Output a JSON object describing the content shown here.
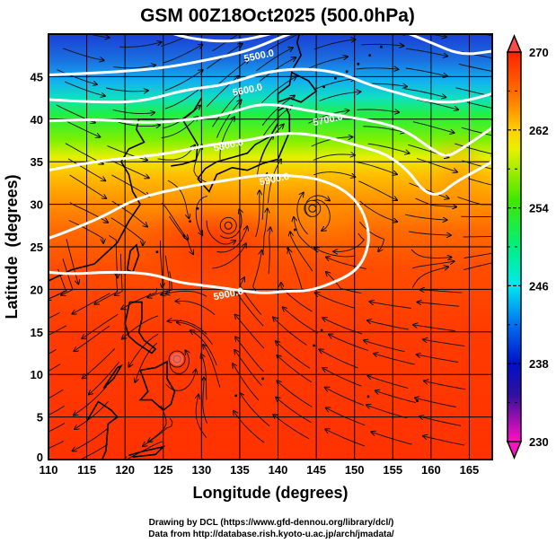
{
  "chart_data": {
    "type": "heatmap",
    "title": "GSM 00Z18Oct2025 (500.0hPa)",
    "xlabel": "Longitude (degrees)",
    "ylabel": "Latitude  (degrees)",
    "xlim": [
      110,
      168
    ],
    "ylim": [
      0,
      50
    ],
    "xticks": [
      110,
      115,
      120,
      125,
      130,
      135,
      140,
      145,
      150,
      155,
      160,
      165
    ],
    "yticks": [
      0,
      5,
      10,
      15,
      20,
      25,
      30,
      35,
      40,
      45
    ],
    "grid": true,
    "colorbar": {
      "min": 230,
      "max": 270,
      "ticks": [
        230,
        238,
        246,
        254,
        262,
        270
      ],
      "extend": "both",
      "placement": "right"
    },
    "shaded_variable_range": [
      230,
      270
    ],
    "contours": [
      {
        "value": 5500,
        "label": "5500.0",
        "lon": [
          135,
          140
        ],
        "lat": [
          47,
          48
        ]
      },
      {
        "value": 5600,
        "label": "5600.0",
        "lon": [
          135,
          137
        ],
        "lat": [
          43,
          44
        ]
      },
      {
        "value": 5700,
        "label": "5700.0",
        "lon": [
          146,
          147
        ],
        "lat": [
          40,
          40
        ]
      },
      {
        "value": 5800,
        "label": "5800.0",
        "lon": [
          133,
          134
        ],
        "lat": [
          37,
          37
        ]
      },
      {
        "value": 5900,
        "label": "5900.0",
        "lon": [
          139,
          140
        ],
        "lat": [
          33,
          33
        ]
      },
      {
        "value": 5900,
        "label": "5900.0",
        "lon": [
          133,
          134
        ],
        "lat": [
          19.5,
          19.5
        ]
      }
    ],
    "contour_lines": [
      {
        "value": 5500,
        "points": [
          [
            110,
            45.2
          ],
          [
            118,
            45.5
          ],
          [
            125,
            46
          ],
          [
            131,
            47
          ],
          [
            136,
            48
          ],
          [
            140,
            49.5
          ],
          [
            143,
            50.5
          ]
        ]
      },
      {
        "value": 5500,
        "points": [
          [
            124,
            50.8
          ],
          [
            128,
            49.5
          ],
          [
            134,
            49
          ],
          [
            140,
            50.2
          ],
          [
            141,
            50.8
          ]
        ]
      },
      {
        "value": 5500,
        "points": [
          [
            155,
            50.8
          ],
          [
            160,
            49
          ],
          [
            164,
            47.5
          ],
          [
            168,
            48
          ]
        ]
      },
      {
        "value": 5600,
        "points": [
          [
            110,
            42.3
          ],
          [
            116,
            42
          ],
          [
            122,
            42
          ],
          [
            128,
            43.5
          ],
          [
            133,
            44
          ],
          [
            138,
            45.5
          ],
          [
            143,
            46
          ],
          [
            148,
            45.5
          ],
          [
            152,
            44
          ],
          [
            156,
            43
          ],
          [
            160,
            42
          ],
          [
            164,
            42
          ],
          [
            168,
            43
          ]
        ]
      },
      {
        "value": 5700,
        "points": [
          [
            110,
            39.8
          ],
          [
            117,
            40
          ],
          [
            123,
            39.5
          ],
          [
            129,
            40
          ],
          [
            133,
            40.5
          ],
          [
            138,
            42
          ],
          [
            144,
            41
          ],
          [
            149,
            40.3
          ],
          [
            154,
            39.5
          ],
          [
            157,
            38.5
          ],
          [
            160,
            36.5
          ],
          [
            162,
            35.5
          ],
          [
            164,
            36.5
          ],
          [
            168,
            39
          ]
        ]
      },
      {
        "value": 5800,
        "points": [
          [
            110,
            34
          ],
          [
            116,
            35
          ],
          [
            121,
            35.5
          ],
          [
            126,
            36
          ],
          [
            131,
            37
          ],
          [
            136,
            37.5
          ],
          [
            141,
            38.5
          ],
          [
            146,
            38
          ],
          [
            150,
            37
          ],
          [
            154,
            36
          ],
          [
            157,
            34
          ],
          [
            159,
            31.5
          ],
          [
            161,
            31
          ],
          [
            163,
            32.5
          ],
          [
            166,
            34
          ],
          [
            168,
            35
          ]
        ]
      },
      {
        "value": 5900,
        "points": [
          [
            110,
            26
          ],
          [
            113,
            27
          ],
          [
            117,
            28.5
          ],
          [
            121,
            30.5
          ],
          [
            125,
            31.5
          ],
          [
            129,
            32.2
          ],
          [
            133,
            32.8
          ],
          [
            138,
            33.5
          ],
          [
            143,
            33.3
          ],
          [
            146,
            32.8
          ],
          [
            149,
            31.5
          ],
          [
            151,
            29.5
          ],
          [
            152,
            26.5
          ],
          [
            151.5,
            24
          ],
          [
            150,
            22
          ],
          [
            147,
            20.7
          ],
          [
            144,
            19.8
          ],
          [
            141,
            19.8
          ],
          [
            138,
            19.5
          ],
          [
            134,
            20
          ],
          [
            130,
            20.5
          ],
          [
            127,
            20.8
          ],
          [
            124,
            21.7
          ],
          [
            121,
            22
          ],
          [
            117,
            22
          ],
          [
            113,
            21.8
          ],
          [
            110,
            22
          ]
        ]
      }
    ],
    "vortices": [
      {
        "name": "low-center",
        "lon": 133.5,
        "lat": 27.5
      },
      {
        "name": "high-center",
        "lon": 144.5,
        "lat": 29.5
      },
      {
        "name": "typhoon-center",
        "lon": 126.8,
        "lat": 11.8
      }
    ]
  },
  "credits": {
    "line1": "Drawing by DCL (https://www.gfd-dennou.org/library/dcl/)",
    "line2": "Data from http://database.rish.kyoto-u.ac.jp/arch/jmadata/"
  },
  "colors": {
    "high": "#ff2a00",
    "low": "#ff00c8",
    "contour": "#ffffff",
    "frame": "#000000"
  }
}
